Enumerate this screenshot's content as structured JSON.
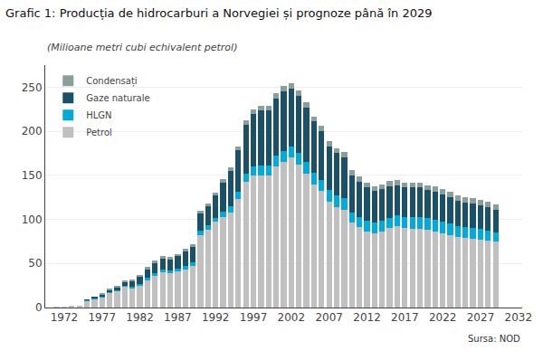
{
  "chart_data": {
    "type": "bar",
    "title": "Grafic 1: Producția de hidrocarburi a Norvegiei și prognoze până în 2029",
    "subtitle": "(Milioane metri cubi echivalent petrol)",
    "annotations": [
      "Sursa: NOD"
    ],
    "stacked": true,
    "grid": true,
    "legend": "upper left",
    "x": [
      1971,
      1972,
      1973,
      1974,
      1975,
      1976,
      1977,
      1978,
      1979,
      1980,
      1981,
      1982,
      1983,
      1984,
      1985,
      1986,
      1987,
      1988,
      1989,
      1990,
      1991,
      1992,
      1993,
      1994,
      1995,
      1996,
      1997,
      1998,
      1999,
      2000,
      2001,
      2002,
      2003,
      2004,
      2005,
      2006,
      2007,
      2008,
      2009,
      2010,
      2011,
      2012,
      2013,
      2014,
      2015,
      2016,
      2017,
      2018,
      2019,
      2020,
      2021,
      2022,
      2023,
      2024,
      2025,
      2026,
      2027,
      2028,
      2029
    ],
    "series": [
      {
        "name": "Petrol",
        "color": "#c0c0c0",
        "values": [
          0.3,
          1.0,
          1.5,
          2.0,
          8.0,
          10,
          12,
          17,
          19,
          24,
          22,
          25,
          31,
          36,
          40,
          39,
          41,
          43,
          47,
          82,
          88,
          97,
          103,
          108,
          123,
          143,
          150,
          150,
          150,
          160,
          165,
          170,
          162,
          152,
          140,
          132,
          120,
          114,
          111,
          96,
          91,
          86,
          84,
          86,
          90,
          92,
          90,
          89,
          89,
          88,
          86,
          84,
          82,
          80,
          79,
          78,
          77,
          76,
          75
        ]
      },
      {
        "name": "HLGN",
        "color": "#00aadd",
        "values": [
          0,
          0,
          0,
          0,
          0.5,
          1,
          1,
          1,
          1,
          1,
          2,
          2,
          3,
          3,
          3,
          3,
          3,
          4,
          4,
          5,
          5,
          5,
          6,
          7,
          8,
          9,
          10,
          11,
          11,
          12,
          13,
          13,
          13,
          13,
          13,
          13,
          13,
          13,
          13,
          12,
          12,
          12,
          12,
          12,
          12,
          13,
          13,
          14,
          14,
          14,
          14,
          13,
          13,
          12,
          12,
          12,
          12,
          11,
          10
        ]
      },
      {
        "name": "Gaze naturale",
        "color": "#1a5068",
        "values": [
          0,
          0,
          0,
          0,
          0.5,
          1,
          2,
          2,
          3,
          4,
          6,
          8,
          10,
          12,
          13,
          13,
          15,
          17,
          18,
          20,
          22,
          25,
          33,
          40,
          48,
          55,
          60,
          63,
          63,
          65,
          67,
          65,
          65,
          62,
          58,
          55,
          50,
          48,
          46,
          42,
          40,
          38,
          36,
          36,
          36,
          34,
          33,
          33,
          33,
          31,
          31,
          31,
          30,
          29,
          28,
          28,
          27,
          27,
          26
        ]
      },
      {
        "name": "Condensați",
        "color": "#8a9e9a",
        "values": [
          0,
          0,
          0,
          0,
          0,
          0,
          0.5,
          1,
          1,
          1,
          1,
          1,
          2,
          2,
          2,
          2,
          2,
          3,
          3,
          3,
          3,
          3,
          4,
          4,
          4,
          5,
          5,
          5,
          5,
          6,
          6,
          6,
          6,
          6,
          6,
          6,
          6,
          6,
          6,
          6,
          6,
          6,
          6,
          6,
          6,
          6,
          6,
          6,
          6,
          6,
          6,
          6,
          6,
          6,
          6,
          6,
          6,
          6,
          6
        ]
      }
    ],
    "xlim": [
      1969.5,
      2032.5
    ],
    "xticks": [
      1972,
      1977,
      1982,
      1987,
      1992,
      1997,
      2002,
      2007,
      2012,
      2017,
      2022,
      2027,
      2032
    ],
    "ylim": [
      0,
      275
    ],
    "yticks": [
      0,
      50,
      100,
      150,
      200,
      250
    ]
  }
}
